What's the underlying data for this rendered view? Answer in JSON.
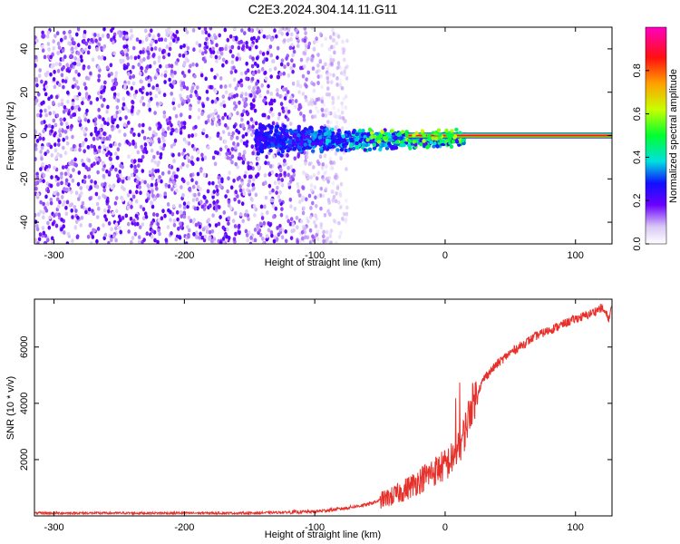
{
  "title": "C2E3.2024.304.14.11.G11",
  "chart_data": [
    {
      "type": "heatmap",
      "xlabel": "Height of straight line (km)",
      "ylabel": "Frequency (Hz)",
      "xlim": [
        -315,
        128
      ],
      "ylim": [
        -50,
        50
      ],
      "xticks": [
        -300,
        -200,
        -100,
        0,
        100
      ],
      "yticks": [
        -40,
        -20,
        0,
        20,
        40
      ],
      "colorbar": {
        "label": "Normalized spectral amplitude",
        "range": [
          0,
          1
        ],
        "ticks": [
          "0.0",
          "0.2",
          "0.4",
          "0.6",
          "0.8"
        ]
      },
      "features": [
        {
          "description": "diffuse purple noise",
          "x_range": [
            -315,
            -75
          ],
          "y_range": [
            -50,
            50
          ]
        },
        {
          "description": "concentrated signal band",
          "x_range": [
            -145,
            15
          ],
          "y_range": [
            -10,
            8
          ]
        },
        {
          "description": "strong near-zero-frequency line",
          "x_range": [
            -30,
            128
          ],
          "y": 0,
          "max_amplitude": 1.0
        }
      ]
    },
    {
      "type": "line",
      "xlabel": "Height of straight line (km)",
      "ylabel": "SNR (10 * v/v)",
      "xlim": [
        -315,
        128
      ],
      "ylim": [
        0,
        7700
      ],
      "xticks": [
        -300,
        -200,
        -100,
        0,
        100
      ],
      "yticks": [
        2000,
        4000,
        6000
      ],
      "color": "#e8302a",
      "x": [
        -315,
        -250,
        -200,
        -150,
        -100,
        -80,
        -60,
        -40,
        -30,
        -20,
        -10,
        0,
        5,
        10,
        15,
        20,
        30,
        40,
        50,
        60,
        70,
        80,
        90,
        100,
        110,
        120,
        126,
        128
      ],
      "y": [
        100,
        100,
        100,
        100,
        150,
        250,
        400,
        700,
        950,
        1250,
        1550,
        1800,
        2000,
        2300,
        3000,
        3900,
        4900,
        5400,
        5800,
        6100,
        6400,
        6600,
        6800,
        7000,
        7150,
        7400,
        7000,
        7500
      ]
    }
  ]
}
